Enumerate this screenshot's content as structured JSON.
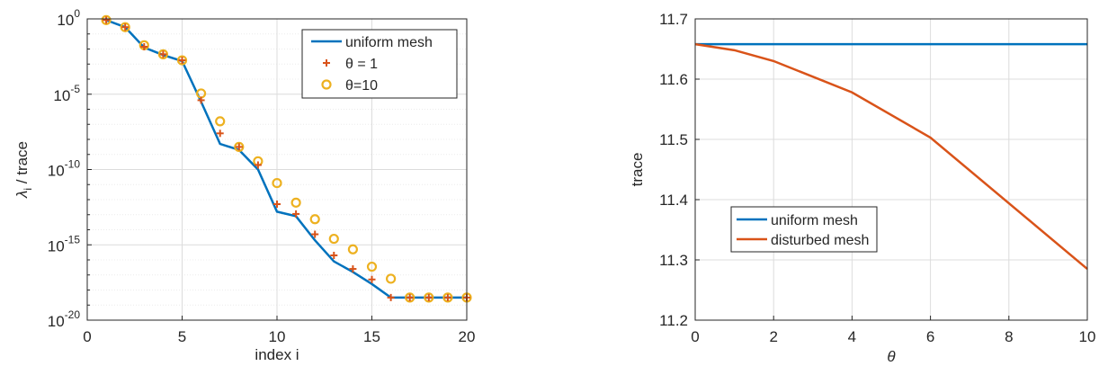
{
  "chart_data": [
    {
      "type": "line",
      "yscale": "log",
      "xlabel": "index i",
      "ylabel": "λ_i / trace",
      "xlim": [
        0,
        20
      ],
      "ylim_exponent": [
        -20,
        0
      ],
      "x_ticks": [
        "0",
        "5",
        "10",
        "15",
        "20"
      ],
      "y_ticks": [
        {
          "base": "10",
          "exp": "0",
          "value_exp": 0
        },
        {
          "base": "10",
          "exp": "-5",
          "value_exp": -5
        },
        {
          "base": "10",
          "exp": "-10",
          "value_exp": -10
        },
        {
          "base": "10",
          "exp": "-15",
          "value_exp": -15
        },
        {
          "base": "10",
          "exp": "-20",
          "value_exp": -20
        }
      ],
      "grid": true,
      "legend_placement": "top-right",
      "x": [
        1,
        2,
        3,
        4,
        5,
        6,
        7,
        8,
        9,
        10,
        11,
        12,
        13,
        14,
        15,
        16,
        17,
        18,
        19,
        20
      ],
      "series": [
        {
          "name": "uniform mesh",
          "style": "line",
          "color": "#0072BD",
          "log10_values": [
            -0.08,
            -0.55,
            -1.9,
            -2.4,
            -2.8,
            -5.5,
            -8.3,
            -8.7,
            -10.0,
            -12.8,
            -13.1,
            -14.7,
            -16.1,
            -16.8,
            -17.6,
            -18.5,
            -18.5,
            -18.5,
            -18.5,
            -18.5
          ]
        },
        {
          "name": "θ = 1",
          "style": "plus",
          "color": "#D95319",
          "log10_values": [
            -0.08,
            -0.55,
            -1.85,
            -2.35,
            -2.75,
            -5.4,
            -7.6,
            -8.5,
            -9.7,
            -12.3,
            -12.95,
            -14.3,
            -15.7,
            -16.6,
            -17.3,
            -18.5,
            -18.5,
            -18.5,
            -18.5,
            -18.5
          ]
        },
        {
          "name": "θ=10",
          "style": "circle",
          "color": "#EDB120",
          "log10_values": [
            -0.08,
            -0.55,
            -1.75,
            -2.35,
            -2.75,
            -4.95,
            -6.8,
            -8.5,
            -9.45,
            -10.9,
            -12.2,
            -13.3,
            -14.6,
            -15.3,
            -16.45,
            -17.25,
            -18.5,
            -18.5,
            -18.5,
            -18.5
          ]
        }
      ]
    },
    {
      "type": "line",
      "xlabel": "θ",
      "ylabel": "trace",
      "xlim": [
        0,
        10
      ],
      "ylim": [
        11.2,
        11.7
      ],
      "x_ticks": [
        "0",
        "2",
        "4",
        "6",
        "8",
        "10"
      ],
      "y_ticks": [
        "11.2",
        "11.3",
        "11.4",
        "11.5",
        "11.6",
        "11.7"
      ],
      "grid": true,
      "legend_placement": "center-left",
      "series": [
        {
          "name": "uniform mesh",
          "color": "#0072BD",
          "x": [
            0,
            10
          ],
          "values": [
            11.658,
            11.658
          ]
        },
        {
          "name": "disturbed mesh",
          "color": "#D95319",
          "x": [
            0,
            1,
            2,
            4,
            6,
            10
          ],
          "values": [
            11.658,
            11.648,
            11.63,
            11.578,
            11.503,
            11.285
          ]
        }
      ]
    }
  ]
}
